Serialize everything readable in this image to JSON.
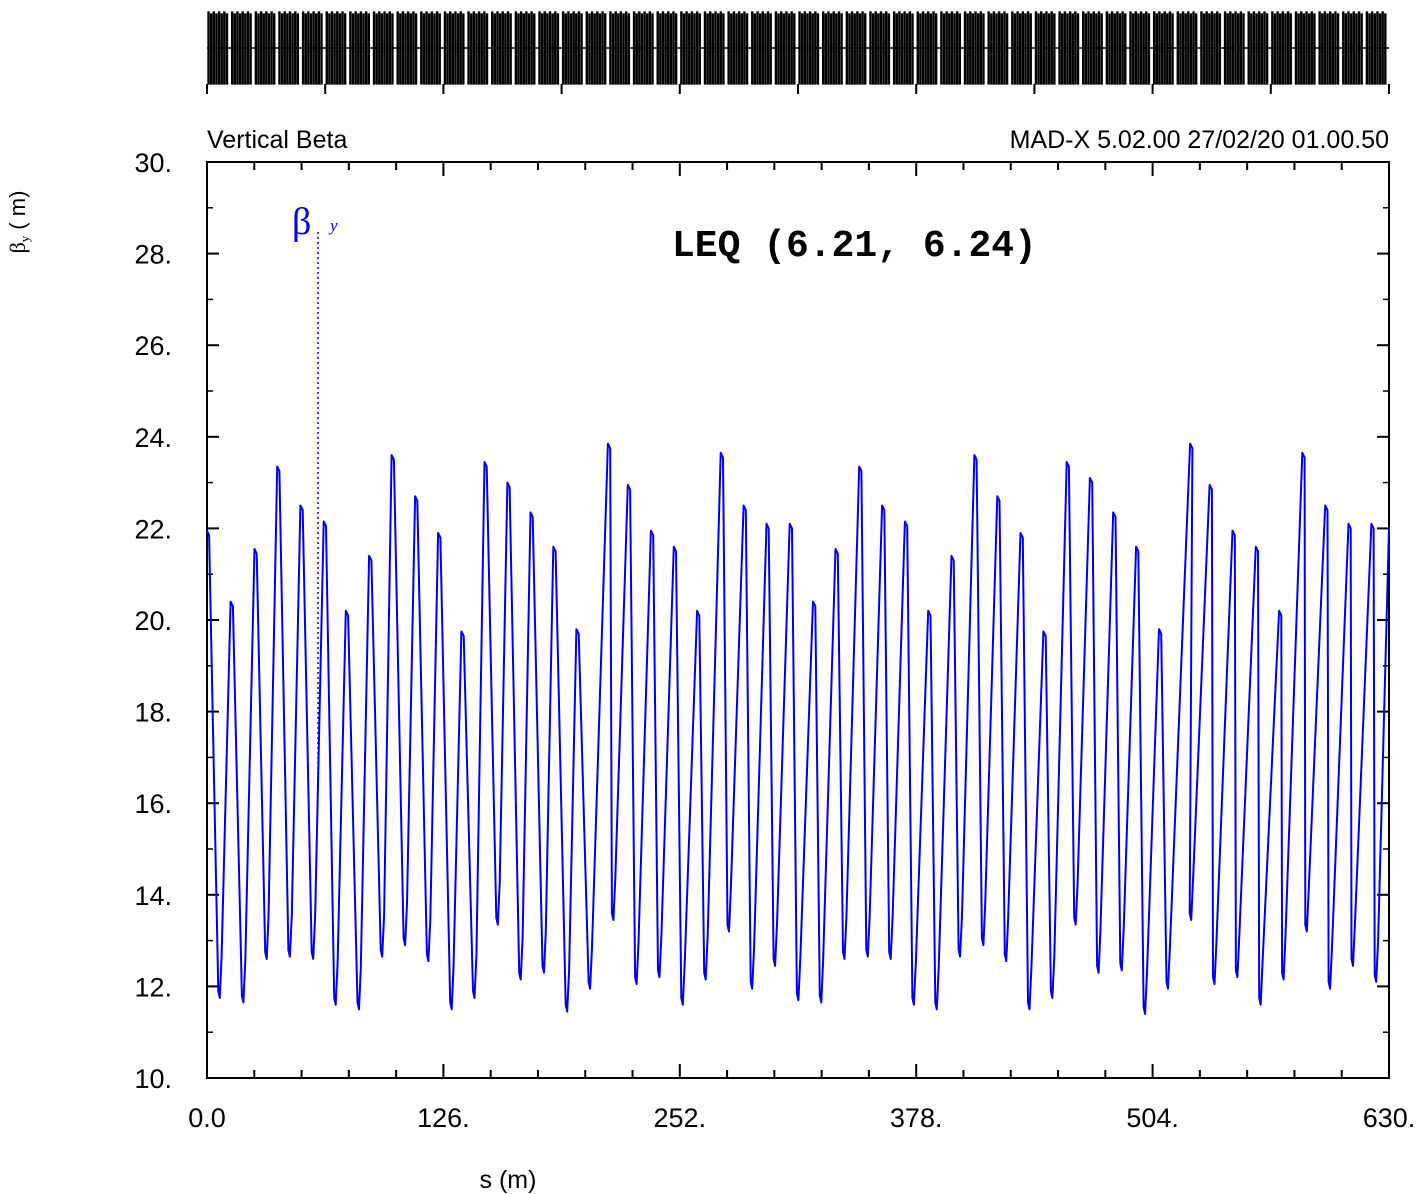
{
  "header": {
    "plot_title": "Vertical Beta",
    "program_stamp": "MAD-X 5.02.00  27/02/20 01.00.50"
  },
  "annotation": {
    "text": "LEQ (6.21, 6.24)"
  },
  "legend": {
    "symbol": "β",
    "subscript": "y"
  },
  "colors": {
    "series": "#0000ee",
    "axes": "#000000",
    "background": "#ffffff"
  },
  "chart_data": {
    "type": "line",
    "title": "Vertical Beta",
    "xlabel": "s (m)",
    "ylabel": "βy (m)",
    "ylabel_parts": {
      "symbol": "β",
      "sub": "y",
      "unit": "( m)"
    },
    "xlim": [
      0,
      630
    ],
    "ylim": [
      10,
      30
    ],
    "x_ticks": [
      "0.0",
      "126.",
      "252.",
      "378.",
      "504.",
      "630."
    ],
    "y_ticks": [
      "10.",
      "12.",
      "14.",
      "16.",
      "18.",
      "20.",
      "22.",
      "24.",
      "26.",
      "28.",
      "30."
    ],
    "grid": false,
    "series": [
      {
        "name": "βy",
        "peaks": [
          {
            "s": 0.5,
            "v": 21.95
          },
          {
            "s": 13.2,
            "v": 20.4
          },
          {
            "s": 25.9,
            "v": 21.55
          },
          {
            "s": 38.0,
            "v": 23.35
          },
          {
            "s": 50.4,
            "v": 22.5
          },
          {
            "s": 62.8,
            "v": 22.15
          },
          {
            "s": 74.6,
            "v": 20.2
          },
          {
            "s": 87.0,
            "v": 21.4
          },
          {
            "s": 99.0,
            "v": 23.6
          },
          {
            "s": 111.5,
            "v": 22.7
          },
          {
            "s": 123.8,
            "v": 21.9
          },
          {
            "s": 136.2,
            "v": 19.75
          },
          {
            "s": 148.5,
            "v": 23.45
          },
          {
            "s": 160.7,
            "v": 23.0
          },
          {
            "s": 173.0,
            "v": 22.35
          },
          {
            "s": 185.2,
            "v": 21.6
          },
          {
            "s": 197.5,
            "v": 19.8
          },
          {
            "s": 214.3,
            "v": 23.85
          },
          {
            "s": 224.9,
            "v": 22.95
          },
          {
            "s": 237.2,
            "v": 21.95
          },
          {
            "s": 249.4,
            "v": 21.6
          },
          {
            "s": 261.8,
            "v": 20.2
          },
          {
            "s": 274.4,
            "v": 23.65
          },
          {
            "s": 286.6,
            "v": 22.5
          },
          {
            "s": 298.8,
            "v": 22.1
          },
          {
            "s": 311.2,
            "v": 22.1
          },
          {
            "s": 323.6,
            "v": 20.4
          },
          {
            "s": 335.6,
            "v": 21.55
          },
          {
            "s": 348.2,
            "v": 23.35
          },
          {
            "s": 360.4,
            "v": 22.5
          },
          {
            "s": 372.6,
            "v": 22.15
          },
          {
            "s": 385.0,
            "v": 20.2
          },
          {
            "s": 397.4,
            "v": 21.4
          },
          {
            "s": 409.6,
            "v": 23.6
          },
          {
            "s": 421.8,
            "v": 22.7
          },
          {
            "s": 434.2,
            "v": 21.9
          },
          {
            "s": 446.4,
            "v": 19.75
          },
          {
            "s": 458.8,
            "v": 23.45
          },
          {
            "s": 471.2,
            "v": 23.1
          },
          {
            "s": 483.6,
            "v": 22.35
          },
          {
            "s": 495.8,
            "v": 21.6
          },
          {
            "s": 508.0,
            "v": 19.8
          },
          {
            "s": 524.6,
            "v": 23.85
          },
          {
            "s": 535.0,
            "v": 22.95
          },
          {
            "s": 547.2,
            "v": 21.95
          },
          {
            "s": 559.6,
            "v": 21.6
          },
          {
            "s": 572.0,
            "v": 20.2
          },
          {
            "s": 584.4,
            "v": 23.65
          },
          {
            "s": 596.6,
            "v": 22.5
          },
          {
            "s": 609.0,
            "v": 22.1
          },
          {
            "s": 621.2,
            "v": 22.1
          }
        ],
        "troughs": [
          {
            "s": 6.4,
            "v": 11.75
          },
          {
            "s": 19.0,
            "v": 11.65
          },
          {
            "s": 31.4,
            "v": 12.6
          },
          {
            "s": 43.8,
            "v": 12.65
          },
          {
            "s": 56.2,
            "v": 12.6
          },
          {
            "s": 68.2,
            "v": 11.6
          },
          {
            "s": 80.6,
            "v": 11.5
          },
          {
            "s": 93.0,
            "v": 12.65
          },
          {
            "s": 105.2,
            "v": 12.9
          },
          {
            "s": 117.6,
            "v": 12.55
          },
          {
            "s": 130.0,
            "v": 11.5
          },
          {
            "s": 142.2,
            "v": 11.75
          },
          {
            "s": 154.6,
            "v": 13.35
          },
          {
            "s": 166.8,
            "v": 12.15
          },
          {
            "s": 179.2,
            "v": 12.3
          },
          {
            "s": 191.6,
            "v": 11.45
          },
          {
            "s": 203.8,
            "v": 11.95
          },
          {
            "s": 216.2,
            "v": 13.45
          },
          {
            "s": 228.6,
            "v": 12.05
          },
          {
            "s": 240.8,
            "v": 12.2
          },
          {
            "s": 253.2,
            "v": 11.6
          },
          {
            "s": 265.4,
            "v": 12.15
          },
          {
            "s": 277.8,
            "v": 13.2
          },
          {
            "s": 290.2,
            "v": 11.95
          },
          {
            "s": 302.4,
            "v": 12.45
          },
          {
            "s": 314.8,
            "v": 11.7
          },
          {
            "s": 327.0,
            "v": 11.65
          },
          {
            "s": 339.4,
            "v": 12.6
          },
          {
            "s": 351.8,
            "v": 12.65
          },
          {
            "s": 364.0,
            "v": 12.6
          },
          {
            "s": 376.4,
            "v": 11.6
          },
          {
            "s": 388.6,
            "v": 11.5
          },
          {
            "s": 401.0,
            "v": 12.65
          },
          {
            "s": 413.4,
            "v": 12.9
          },
          {
            "s": 425.6,
            "v": 12.55
          },
          {
            "s": 438.0,
            "v": 11.5
          },
          {
            "s": 450.2,
            "v": 11.75
          },
          {
            "s": 462.6,
            "v": 13.35
          },
          {
            "s": 474.8,
            "v": 12.3
          },
          {
            "s": 487.2,
            "v": 12.35
          },
          {
            "s": 499.6,
            "v": 11.4
          },
          {
            "s": 511.8,
            "v": 11.95
          },
          {
            "s": 524.2,
            "v": 13.45
          },
          {
            "s": 536.6,
            "v": 12.05
          },
          {
            "s": 548.8,
            "v": 12.2
          },
          {
            "s": 561.2,
            "v": 11.6
          },
          {
            "s": 573.4,
            "v": 12.15
          },
          {
            "s": 585.8,
            "v": 13.2
          },
          {
            "s": 598.2,
            "v": 11.95
          },
          {
            "s": 610.4,
            "v": 12.45
          },
          {
            "s": 622.8,
            "v": 12.1
          }
        ]
      }
    ]
  }
}
